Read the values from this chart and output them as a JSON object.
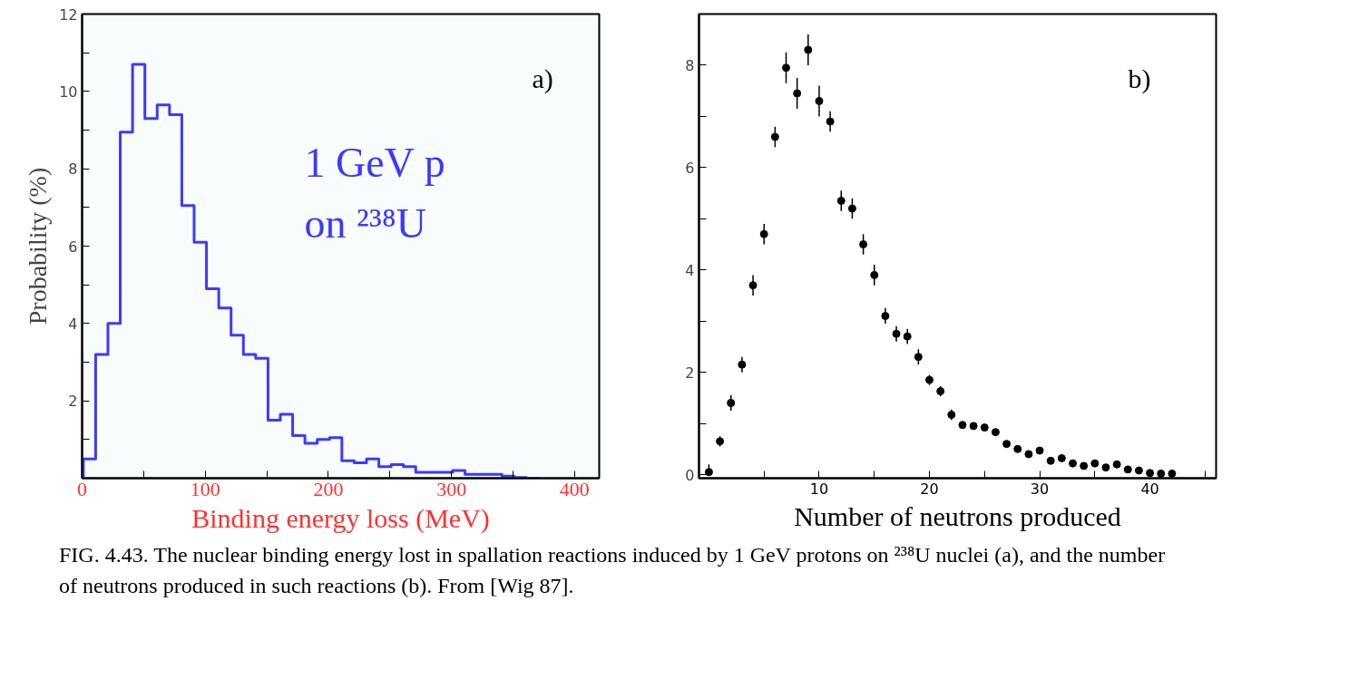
{
  "chart_data": [
    {
      "type": "histogram",
      "ylabel": "Probability (%)",
      "xlabel": "Binding energy loss (MeV)",
      "color": "#3a3aff",
      "bins": [
        1,
        11,
        21,
        31,
        41,
        51,
        61,
        71,
        81,
        91,
        101,
        111,
        121,
        131,
        141,
        151,
        161,
        171,
        181,
        191,
        201,
        211,
        221,
        231,
        241,
        251,
        261,
        271,
        281,
        291,
        301,
        311,
        321,
        331,
        341,
        351,
        361,
        371
      ],
      "values": [
        0.5,
        3.2,
        4.0,
        8.95,
        10.7,
        9.3,
        9.65,
        9.4,
        7.05,
        6.1,
        4.9,
        4.4,
        3.7,
        3.2,
        3.1,
        1.5,
        1.65,
        1.1,
        0.9,
        1.0,
        1.05,
        0.45,
        0.4,
        0.5,
        0.3,
        0.35,
        0.3,
        0.15,
        0.15,
        0.15,
        0.2,
        0.1,
        0.1,
        0.1,
        0.05,
        0.02,
        0.0
      ],
      "xlim": [
        0,
        420
      ],
      "ylim": [
        0,
        12
      ],
      "xticks": [
        0,
        {
          "value": 50,
          "label": null
        },
        100,
        {
          "value": 150,
          "label": null
        },
        200,
        {
          "value": 250,
          "label": null
        },
        300,
        {
          "value": 350,
          "label": null
        },
        400
      ],
      "yticks": [
        {
          "value": 1,
          "label": null
        },
        2,
        {
          "value": 3,
          "label": null
        },
        4,
        {
          "value": 5,
          "label": null
        },
        6,
        {
          "value": 7,
          "label": null
        },
        8,
        {
          "value": 9,
          "label": null
        },
        10,
        {
          "value": 11,
          "label": null
        },
        12
      ],
      "annotations": [
        "a)",
        "1 GeV p",
        "on ²³⁸U"
      ],
      "grid": false
    },
    {
      "type": "scatter",
      "xlabel": "Number of neutrons produced",
      "marker": "circle",
      "color": "#000000",
      "x": [
        0,
        1,
        2,
        3,
        4,
        5,
        6,
        7,
        8,
        9,
        10,
        11,
        12,
        13,
        14,
        15,
        16,
        17,
        18,
        19,
        20,
        21,
        22,
        23,
        24,
        25,
        26,
        27,
        28,
        29,
        30,
        31,
        32,
        33,
        34,
        35,
        36,
        37,
        38,
        39,
        40,
        41,
        42
      ],
      "values": [
        0.05,
        0.65,
        1.4,
        2.15,
        3.7,
        4.7,
        6.6,
        7.95,
        7.45,
        8.3,
        7.3,
        6.9,
        5.35,
        5.2,
        4.5,
        3.9,
        3.1,
        2.75,
        2.7,
        2.3,
        1.85,
        1.63,
        1.17,
        0.97,
        0.95,
        0.92,
        0.83,
        0.6,
        0.5,
        0.4,
        0.47,
        0.27,
        0.32,
        0.22,
        0.17,
        0.22,
        0.14,
        0.2,
        0.1,
        0.08,
        0.03,
        0.02,
        0.02
      ],
      "errors": [
        [
          0,
          0.2
        ],
        0.1,
        0.15,
        0.15,
        0.2,
        0.2,
        0.2,
        0.3,
        0.3,
        0.3,
        0.3,
        0.2,
        0.2,
        0.2,
        0.2,
        0.2,
        0.15,
        0.15,
        0.15,
        0.15,
        0.1,
        0.1,
        0.1,
        null,
        null,
        null,
        null,
        null,
        null,
        null,
        null,
        null,
        null,
        null,
        null,
        null,
        null,
        null,
        null,
        null,
        null,
        null,
        null
      ],
      "xlim": [
        -0.9,
        46
      ],
      "ylim": [
        -0.07,
        9
      ],
      "xticks": [
        {
          "value": 5,
          "label": null
        },
        10,
        {
          "value": 15,
          "label": null
        },
        20,
        {
          "value": 25,
          "label": null
        },
        30,
        {
          "value": 35,
          "label": null
        },
        40,
        {
          "value": 45,
          "label": null
        }
      ],
      "yticks": [
        0,
        {
          "value": 1,
          "label": null
        },
        2,
        {
          "value": 3,
          "label": null
        },
        4,
        {
          "value": 5,
          "label": null
        },
        6,
        {
          "value": 7,
          "label": null
        },
        8
      ],
      "annotations": [
        "b)",
        "FIG. 4.43.  The nuclear binding energy lost in spallation reactions induced by 1 GeV protons on ²³⁸U nuclei (a), and the number of neutrons produced in such reactions (b). From [Wig 87]."
      ],
      "grid": false
    }
  ]
}
